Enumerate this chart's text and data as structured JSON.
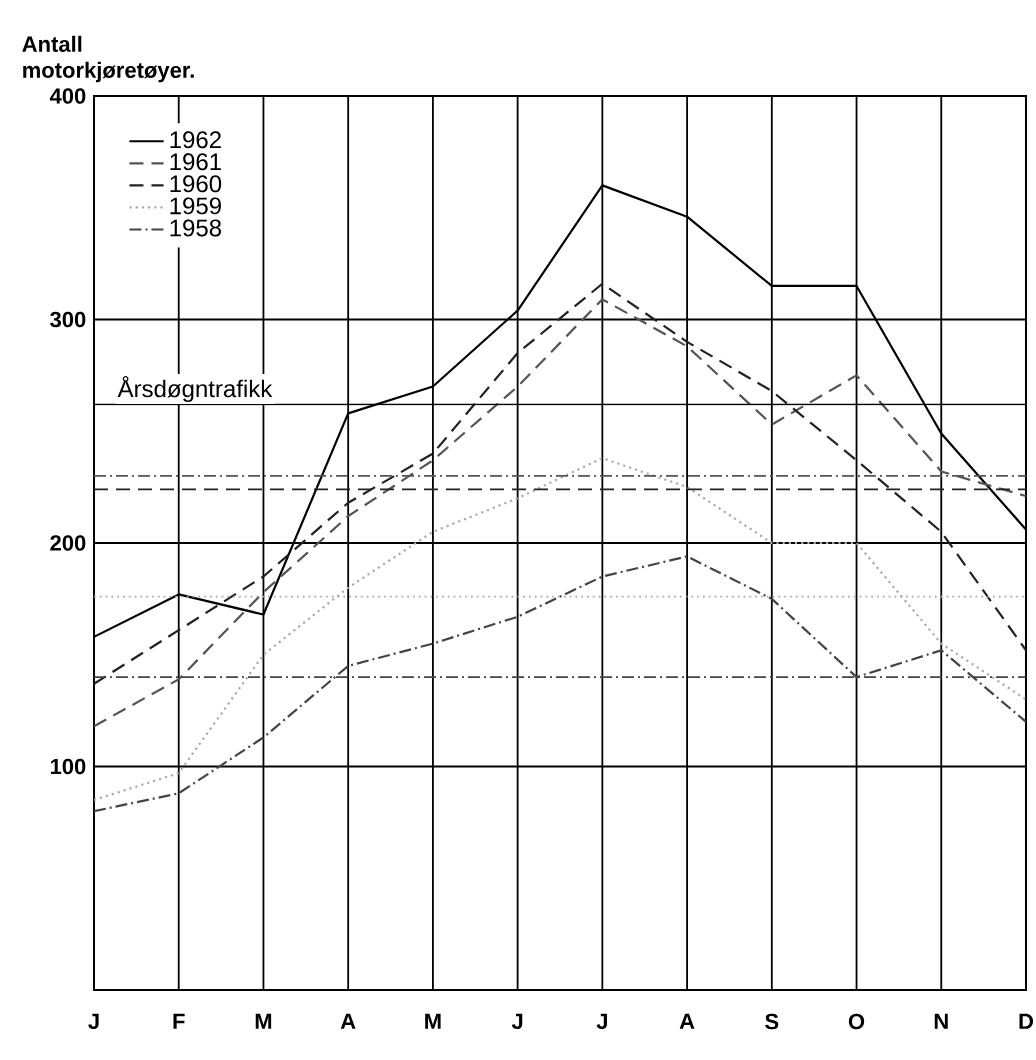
{
  "chart_data": {
    "type": "line",
    "ylabel": "Antall motorkjøretøyer.",
    "categories": [
      "J",
      "F",
      "M",
      "A",
      "M",
      "J",
      "J",
      "A",
      "S",
      "O",
      "N",
      "D"
    ],
    "series": [
      {
        "name": "1962",
        "color": "#000000",
        "line_style": "solid",
        "values": [
          158,
          177,
          168,
          258,
          270,
          304,
          360,
          346,
          315,
          315,
          249,
          206
        ]
      },
      {
        "name": "1961",
        "color": "#555555",
        "line_style": "dashed",
        "values": [
          118,
          139,
          178,
          212,
          237,
          270,
          309,
          288,
          253,
          275,
          232,
          221
        ]
      },
      {
        "name": "1960",
        "color": "#222222",
        "line_style": "dashed",
        "values": [
          137,
          161,
          185,
          218,
          240,
          285,
          316,
          290,
          268,
          237,
          205,
          152
        ]
      },
      {
        "name": "1959",
        "color": "#aaaaaa",
        "line_style": "dotted",
        "values": [
          85,
          97,
          150,
          180,
          205,
          220,
          238,
          225,
          200,
          200,
          155,
          130
        ]
      },
      {
        "name": "1958",
        "color": "#444444",
        "line_style": "dashdotted",
        "values": [
          80,
          88,
          113,
          145,
          155,
          167,
          185,
          194,
          175,
          140,
          152,
          120
        ]
      }
    ],
    "ref_lines": [
      {
        "axis": "y",
        "value": 262,
        "label": "Årsdøgntrafikk",
        "color": "#000000",
        "line_style": "solid"
      },
      {
        "axis": "y",
        "value": 230,
        "color": "#555555",
        "line_style": "dashdotted"
      },
      {
        "axis": "y",
        "value": 224,
        "color": "#222222",
        "line_style": "dashed"
      },
      {
        "axis": "y",
        "value": 176,
        "color": "#aaaaaa",
        "line_style": "dotted"
      },
      {
        "axis": "y",
        "value": 140,
        "color": "#444444",
        "line_style": "dashdotted"
      }
    ],
    "ylim": [
      0,
      400
    ],
    "yticks": [
      100,
      200,
      300,
      400
    ],
    "grid": true,
    "legend": "top left",
    "marker": "none"
  }
}
